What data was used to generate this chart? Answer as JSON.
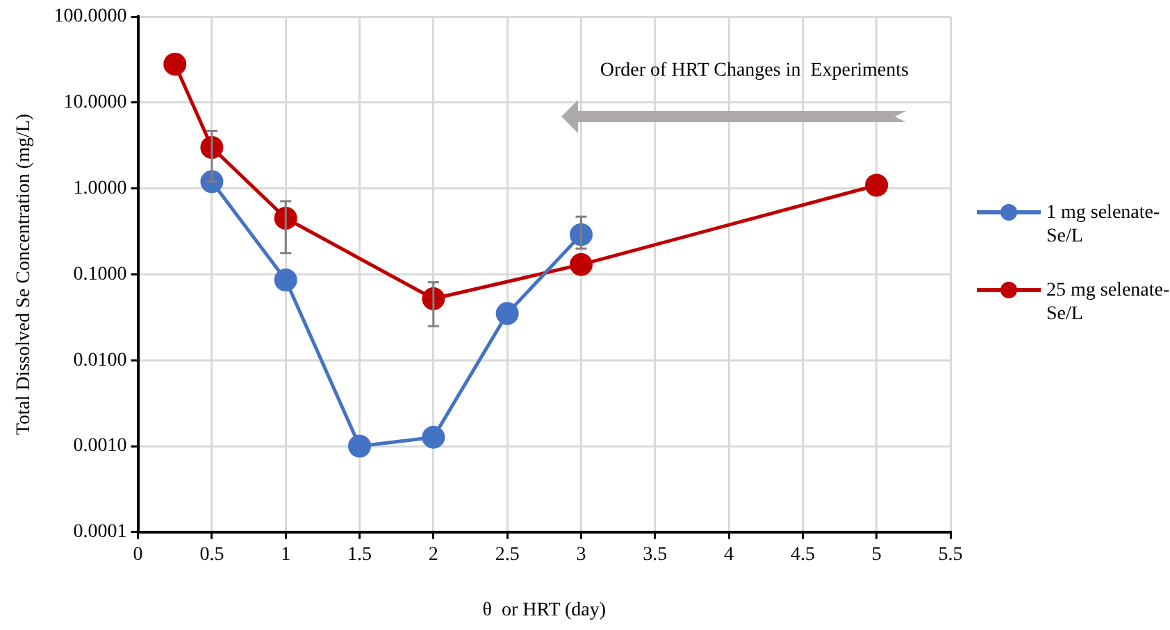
{
  "chart_data": {
    "type": "line",
    "xlabel": "θ  or HRT (day)",
    "ylabel": "Total Dissolved Se Concentration (mg/L)",
    "log": "y",
    "grid": true,
    "legend": "right",
    "marker": "circle",
    "line_style": "solid",
    "xlim": [
      0,
      5.5
    ],
    "xticks": [
      0,
      0.5,
      1,
      1.5,
      2,
      2.5,
      3,
      3.5,
      4,
      4.5,
      5,
      5.5
    ],
    "ylim": [
      0.0001,
      100
    ],
    "yticks": [
      {
        "value": 0.0001,
        "label": "0.0001"
      },
      {
        "value": 0.001,
        "label": "0.0010"
      },
      {
        "value": 0.01,
        "label": "0.0100"
      },
      {
        "value": 0.1,
        "label": "0.1000"
      },
      {
        "value": 1,
        "label": "1.0000"
      },
      {
        "value": 10,
        "label": "10.0000"
      },
      {
        "value": 100,
        "label": "100.0000"
      }
    ],
    "annotations": [
      "Order of HRT Changes in  Experiments"
    ],
    "series": [
      {
        "name": "1 mg selenate-Se/L",
        "color": "#4472c4",
        "x": [
          0.5,
          1,
          1.5,
          2,
          2.5,
          3
        ],
        "values": [
          1.2,
          0.086,
          0.001,
          0.00127,
          0.035,
          0.29
        ],
        "errors": [
          null,
          null,
          null,
          null,
          null,
          [
            0.2,
            0.47
          ]
        ]
      },
      {
        "name": "25 mg selenate-Se/L",
        "color": "#c00000",
        "x": [
          0.25,
          0.5,
          1,
          2,
          3,
          5
        ],
        "values": [
          28,
          3.0,
          0.45,
          0.052,
          0.13,
          1.09
        ],
        "errors": [
          null,
          [
            1.2,
            4.7
          ],
          [
            0.177,
            0.71
          ],
          [
            0.025,
            0.081
          ],
          null,
          null
        ]
      }
    ]
  }
}
